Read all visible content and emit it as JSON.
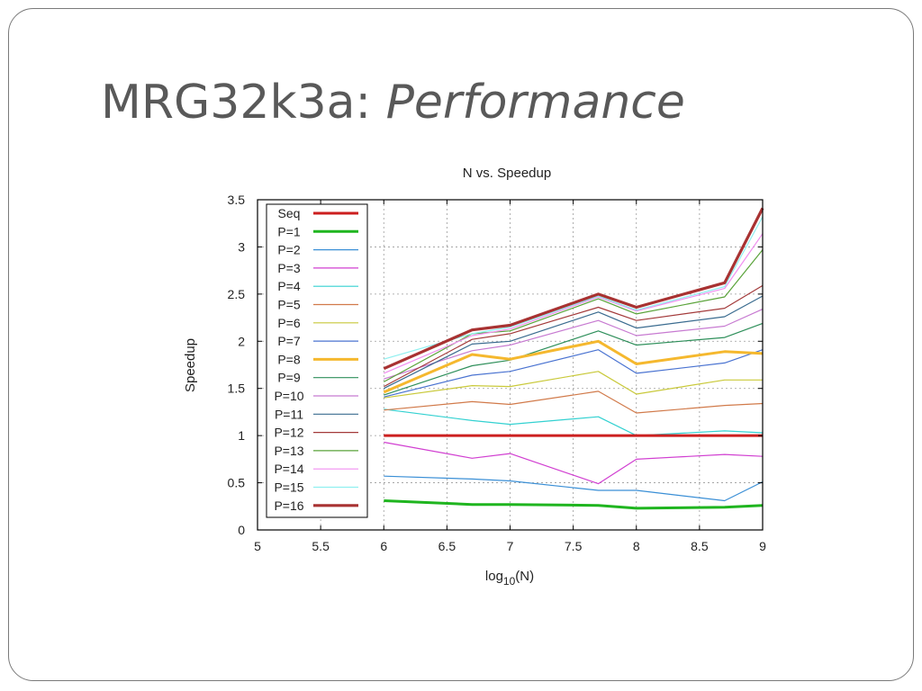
{
  "slide": {
    "title_main": "MRG32k3a: ",
    "title_emph": "Performance"
  },
  "chart_data": {
    "type": "line",
    "title": "N vs. Speedup",
    "xlabel": "log",
    "xlabel_sub": "10",
    "xlabel_suffix": "(N)",
    "ylabel": "Speedup",
    "xlim": [
      5,
      9
    ],
    "ylim": [
      0,
      3.5
    ],
    "xticks": [
      "5",
      "5.5",
      "6",
      "6.5",
      "7",
      "7.5",
      "8",
      "8.5",
      "9"
    ],
    "yticks": [
      "0",
      "0.5",
      "1",
      "1.5",
      "2",
      "2.5",
      "3",
      "3.5"
    ],
    "grid": true,
    "legend_position": "top-left",
    "x": [
      6,
      6.699,
      7,
      7.699,
      8,
      8.699,
      9
    ],
    "series": [
      {
        "name": "Seq",
        "color": "#cc1f1f",
        "width": 3,
        "values": [
          1,
          1,
          1,
          1,
          1,
          1,
          1
        ]
      },
      {
        "name": "P=1",
        "color": "#1fb51f",
        "width": 3,
        "values": [
          0.31,
          0.27,
          0.27,
          0.26,
          0.23,
          0.24,
          0.26
        ]
      },
      {
        "name": "P=2",
        "color": "#3a8fd6",
        "width": 1.2,
        "values": [
          0.57,
          0.54,
          0.52,
          0.42,
          0.42,
          0.31,
          0.51
        ]
      },
      {
        "name": "P=3",
        "color": "#d13fd1",
        "width": 1.2,
        "values": [
          0.93,
          0.76,
          0.81,
          0.49,
          0.75,
          0.8,
          0.78
        ]
      },
      {
        "name": "P=4",
        "color": "#33d1d1",
        "width": 1.2,
        "values": [
          1.28,
          1.16,
          1.12,
          1.2,
          1.0,
          1.05,
          1.03
        ]
      },
      {
        "name": "P=5",
        "color": "#d17a4a",
        "width": 1.2,
        "values": [
          1.27,
          1.36,
          1.33,
          1.47,
          1.24,
          1.32,
          1.34
        ]
      },
      {
        "name": "P=6",
        "color": "#c9c93a",
        "width": 1.2,
        "values": [
          1.4,
          1.53,
          1.52,
          1.68,
          1.44,
          1.59,
          1.59
        ]
      },
      {
        "name": "P=7",
        "color": "#4a73d1",
        "width": 1.2,
        "values": [
          1.41,
          1.64,
          1.68,
          1.91,
          1.66,
          1.77,
          1.91
        ]
      },
      {
        "name": "P=8",
        "color": "#f5b82e",
        "width": 3,
        "values": [
          1.46,
          1.86,
          1.81,
          2.0,
          1.76,
          1.89,
          1.87
        ]
      },
      {
        "name": "P=9",
        "color": "#2e8f5a",
        "width": 1.2,
        "values": [
          1.43,
          1.74,
          1.8,
          2.11,
          1.96,
          2.04,
          2.19
        ]
      },
      {
        "name": "P=10",
        "color": "#c77ad1",
        "width": 1.2,
        "values": [
          1.6,
          1.9,
          1.96,
          2.22,
          2.06,
          2.16,
          2.34
        ]
      },
      {
        "name": "P=11",
        "color": "#3a6b8f",
        "width": 1.2,
        "values": [
          1.5,
          1.97,
          2.0,
          2.31,
          2.14,
          2.26,
          2.48
        ]
      },
      {
        "name": "P=12",
        "color": "#a33a3a",
        "width": 1.2,
        "values": [
          1.52,
          2.02,
          2.08,
          2.36,
          2.22,
          2.35,
          2.59
        ]
      },
      {
        "name": "P=13",
        "color": "#5aa33a",
        "width": 1.2,
        "values": [
          1.57,
          2.08,
          2.11,
          2.45,
          2.29,
          2.47,
          2.97
        ]
      },
      {
        "name": "P=14",
        "color": "#f08ff0",
        "width": 1.2,
        "values": [
          1.66,
          2.06,
          2.13,
          2.47,
          2.32,
          2.56,
          3.14
        ]
      },
      {
        "name": "P=15",
        "color": "#8ff0f0",
        "width": 1.2,
        "values": [
          1.81,
          2.08,
          2.15,
          2.48,
          2.33,
          2.58,
          3.32
        ]
      },
      {
        "name": "P=16",
        "color": "#a83232",
        "width": 3.2,
        "values": [
          1.71,
          2.12,
          2.17,
          2.5,
          2.36,
          2.62,
          3.41
        ]
      }
    ]
  }
}
